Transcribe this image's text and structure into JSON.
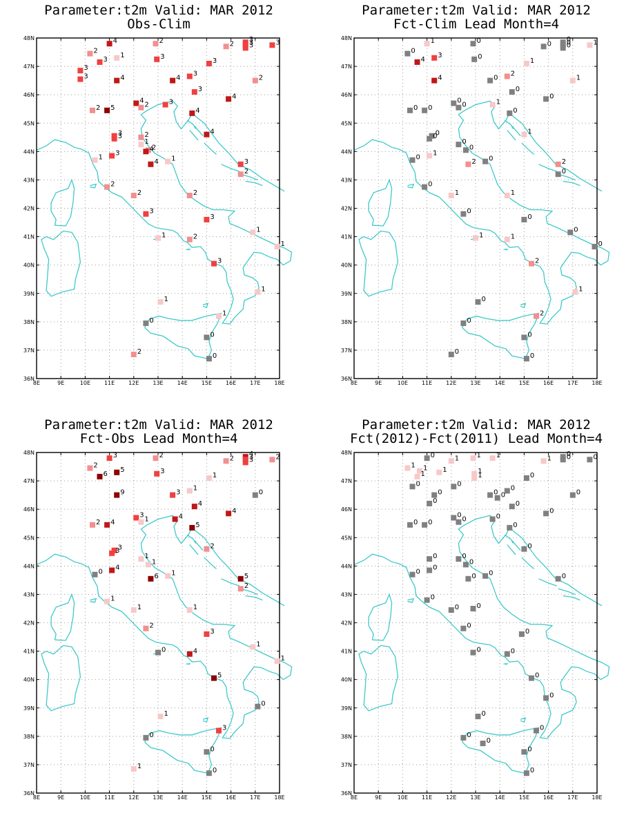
{
  "panels": [
    {
      "title1": "Parameter:t2m Valid: MAR 2012",
      "title2": "Obs-Clim",
      "stations": [
        [
          11.0,
          47.8,
          4
        ],
        [
          12.9,
          47.8,
          2
        ],
        [
          16.6,
          47.85,
          3
        ],
        [
          16.6,
          47.75,
          3
        ],
        [
          17.7,
          47.75,
          3
        ],
        [
          15.8,
          47.7,
          2
        ],
        [
          16.6,
          47.65,
          3
        ],
        [
          10.2,
          47.45,
          2
        ],
        [
          10.6,
          47.15,
          3
        ],
        [
          11.3,
          47.3,
          1
        ],
        [
          9.8,
          46.85,
          3
        ],
        [
          9.8,
          46.55,
          3
        ],
        [
          12.95,
          47.25,
          3
        ],
        [
          15.1,
          47.1,
          3
        ],
        [
          11.3,
          46.5,
          4
        ],
        [
          13.6,
          46.5,
          4
        ],
        [
          14.3,
          46.65,
          3
        ],
        [
          17.0,
          46.5,
          2
        ],
        [
          14.5,
          46.1,
          3
        ],
        [
          15.9,
          45.85,
          4
        ],
        [
          12.1,
          45.7,
          4
        ],
        [
          12.3,
          45.55,
          2
        ],
        [
          13.3,
          45.65,
          3
        ],
        [
          14.4,
          45.35,
          4
        ],
        [
          10.3,
          45.45,
          2
        ],
        [
          10.9,
          45.45,
          5
        ],
        [
          11.2,
          44.55,
          3
        ],
        [
          11.2,
          44.45,
          3
        ],
        [
          12.3,
          44.5,
          2
        ],
        [
          12.3,
          44.25,
          1
        ],
        [
          12.6,
          44.05,
          2
        ],
        [
          12.5,
          44.0,
          4
        ],
        [
          11.1,
          43.85,
          3
        ],
        [
          10.4,
          43.7,
          1
        ],
        [
          13.4,
          43.65,
          1
        ],
        [
          12.7,
          43.55,
          4
        ],
        [
          16.4,
          43.55,
          3
        ],
        [
          16.4,
          43.2,
          2
        ],
        [
          15.0,
          44.6,
          4
        ],
        [
          10.9,
          42.75,
          2
        ],
        [
          12.0,
          42.45,
          2
        ],
        [
          14.3,
          42.45,
          2
        ],
        [
          12.5,
          41.8,
          3
        ],
        [
          15.0,
          41.6,
          3
        ],
        [
          16.9,
          41.15,
          1
        ],
        [
          13.0,
          40.95,
          1
        ],
        [
          14.3,
          40.9,
          2
        ],
        [
          15.3,
          40.05,
          3
        ],
        [
          17.9,
          40.65,
          1
        ],
        [
          17.1,
          39.05,
          1
        ],
        [
          13.1,
          38.7,
          1
        ],
        [
          15.5,
          38.2,
          1
        ],
        [
          12.5,
          37.95,
          0
        ],
        [
          15.0,
          37.45,
          0
        ],
        [
          15.1,
          36.7,
          0
        ],
        [
          12.0,
          36.85,
          2
        ]
      ]
    },
    {
      "title1": "Parameter:t2m Valid: MAR 2012",
      "title2": "Fct-Clim Lead Month=4",
      "stations": [
        [
          11.0,
          47.8,
          1
        ],
        [
          12.9,
          47.8,
          0
        ],
        [
          16.6,
          47.85,
          0
        ],
        [
          16.6,
          47.75,
          0
        ],
        [
          17.7,
          47.75,
          1
        ],
        [
          15.8,
          47.7,
          0
        ],
        [
          16.6,
          47.65,
          0
        ],
        [
          10.2,
          47.45,
          0
        ],
        [
          10.6,
          47.15,
          4
        ],
        [
          11.3,
          47.3,
          3
        ],
        [
          12.95,
          47.25,
          0
        ],
        [
          15.1,
          47.1,
          1
        ],
        [
          11.3,
          46.5,
          4
        ],
        [
          13.6,
          46.5,
          0
        ],
        [
          14.3,
          46.65,
          2
        ],
        [
          17.0,
          46.5,
          1
        ],
        [
          14.5,
          46.1,
          0
        ],
        [
          15.9,
          45.85,
          0
        ],
        [
          12.1,
          45.7,
          0
        ],
        [
          12.3,
          45.55,
          0
        ],
        [
          13.7,
          45.65,
          1
        ],
        [
          14.4,
          45.35,
          0
        ],
        [
          10.3,
          45.45,
          0
        ],
        [
          10.9,
          45.45,
          0
        ],
        [
          11.2,
          44.55,
          0
        ],
        [
          11.1,
          44.45,
          0
        ],
        [
          12.3,
          44.25,
          0
        ],
        [
          12.6,
          44.05,
          0
        ],
        [
          11.1,
          43.85,
          1
        ],
        [
          10.4,
          43.7,
          0
        ],
        [
          13.4,
          43.65,
          0
        ],
        [
          12.7,
          43.55,
          2
        ],
        [
          16.4,
          43.55,
          2
        ],
        [
          16.4,
          43.2,
          0
        ],
        [
          15.0,
          44.6,
          1
        ],
        [
          10.9,
          42.75,
          0
        ],
        [
          12.0,
          42.45,
          1
        ],
        [
          14.3,
          42.45,
          1
        ],
        [
          12.5,
          41.8,
          0
        ],
        [
          15.0,
          41.6,
          0
        ],
        [
          16.9,
          41.15,
          0
        ],
        [
          13.0,
          40.95,
          1
        ],
        [
          14.3,
          40.9,
          1
        ],
        [
          15.3,
          40.05,
          2
        ],
        [
          17.9,
          40.65,
          0
        ],
        [
          17.1,
          39.05,
          1
        ],
        [
          13.1,
          38.7,
          0
        ],
        [
          15.5,
          38.2,
          2
        ],
        [
          12.5,
          37.95,
          0
        ],
        [
          15.0,
          37.45,
          0
        ],
        [
          15.1,
          36.7,
          0
        ],
        [
          12.0,
          36.85,
          0
        ]
      ]
    },
    {
      "title1": "Parameter:t2m Valid: MAR 2012",
      "title2": "Fct-Obs Lead Month=4",
      "stations": [
        [
          11.0,
          47.8,
          3
        ],
        [
          12.9,
          47.8,
          2
        ],
        [
          16.6,
          47.85,
          4
        ],
        [
          16.6,
          47.75,
          3
        ],
        [
          17.7,
          47.75,
          2
        ],
        [
          15.8,
          47.7,
          2
        ],
        [
          16.6,
          47.65,
          3
        ],
        [
          10.2,
          47.45,
          2
        ],
        [
          10.6,
          47.15,
          6
        ],
        [
          11.3,
          47.3,
          5
        ],
        [
          12.95,
          47.25,
          3
        ],
        [
          15.1,
          47.1,
          1
        ],
        [
          11.3,
          46.5,
          9
        ],
        [
          13.6,
          46.5,
          3
        ],
        [
          14.3,
          46.65,
          1
        ],
        [
          17.0,
          46.5,
          0
        ],
        [
          14.5,
          46.1,
          4
        ],
        [
          15.9,
          45.85,
          4
        ],
        [
          12.1,
          45.7,
          3
        ],
        [
          12.3,
          45.55,
          1
        ],
        [
          13.7,
          45.65,
          4
        ],
        [
          14.4,
          45.35,
          5
        ],
        [
          10.3,
          45.45,
          2
        ],
        [
          10.9,
          45.45,
          4
        ],
        [
          11.2,
          44.55,
          3
        ],
        [
          11.1,
          44.45,
          3
        ],
        [
          12.3,
          44.25,
          1
        ],
        [
          12.6,
          44.05,
          1
        ],
        [
          11.1,
          43.85,
          4
        ],
        [
          10.4,
          43.7,
          0
        ],
        [
          13.4,
          43.65,
          1
        ],
        [
          12.7,
          43.55,
          6
        ],
        [
          16.4,
          43.55,
          5
        ],
        [
          16.4,
          43.2,
          2
        ],
        [
          15.0,
          44.6,
          2
        ],
        [
          10.9,
          42.75,
          1
        ],
        [
          12.0,
          42.45,
          1
        ],
        [
          14.3,
          42.45,
          1
        ],
        [
          12.5,
          41.8,
          2
        ],
        [
          15.0,
          41.6,
          3
        ],
        [
          16.9,
          41.15,
          1
        ],
        [
          13.0,
          40.95,
          0
        ],
        [
          14.3,
          40.9,
          4
        ],
        [
          15.3,
          40.05,
          5
        ],
        [
          17.9,
          40.65,
          1
        ],
        [
          17.1,
          39.05,
          0
        ],
        [
          13.1,
          38.7,
          1
        ],
        [
          15.5,
          38.2,
          3
        ],
        [
          12.5,
          37.95,
          0
        ],
        [
          15.0,
          37.45,
          0
        ],
        [
          15.1,
          36.7,
          0
        ],
        [
          12.0,
          36.85,
          1
        ]
      ]
    },
    {
      "title1": "Parameter:t2m Valid: MAR 2012",
      "title2": "Fct(2012)-Fct(2011) Lead Month=4",
      "stations": [
        [
          11.0,
          47.8,
          0
        ],
        [
          12.9,
          47.8,
          1
        ],
        [
          13.7,
          47.8,
          1
        ],
        [
          16.6,
          47.85,
          0
        ],
        [
          16.6,
          47.75,
          0
        ],
        [
          17.7,
          47.75,
          0
        ],
        [
          15.8,
          47.7,
          1
        ],
        [
          12.0,
          47.7,
          1
        ],
        [
          10.2,
          47.45,
          1
        ],
        [
          10.7,
          47.35,
          1
        ],
        [
          11.5,
          47.3,
          1
        ],
        [
          10.6,
          47.15,
          1
        ],
        [
          12.95,
          47.25,
          1
        ],
        [
          12.95,
          47.1,
          1
        ],
        [
          15.1,
          47.1,
          0
        ],
        [
          10.4,
          46.8,
          0
        ],
        [
          12.1,
          46.8,
          0
        ],
        [
          11.3,
          46.5,
          0
        ],
        [
          13.6,
          46.5,
          0
        ],
        [
          13.9,
          46.4,
          0
        ],
        [
          14.3,
          46.65,
          0
        ],
        [
          17.0,
          46.5,
          0
        ],
        [
          14.5,
          46.1,
          0
        ],
        [
          11.1,
          46.2,
          0
        ],
        [
          15.9,
          45.85,
          0
        ],
        [
          12.1,
          45.7,
          0
        ],
        [
          12.3,
          45.55,
          0
        ],
        [
          13.7,
          45.65,
          0
        ],
        [
          14.4,
          45.35,
          0
        ],
        [
          10.3,
          45.45,
          0
        ],
        [
          10.9,
          45.45,
          0
        ],
        [
          11.1,
          44.25,
          0
        ],
        [
          12.3,
          44.25,
          0
        ],
        [
          12.6,
          44.05,
          0
        ],
        [
          11.1,
          43.85,
          0
        ],
        [
          10.4,
          43.7,
          0
        ],
        [
          13.4,
          43.65,
          0
        ],
        [
          12.7,
          43.55,
          0
        ],
        [
          16.4,
          43.55,
          0
        ],
        [
          15.0,
          44.6,
          0
        ],
        [
          11.0,
          42.8,
          0
        ],
        [
          12.0,
          42.45,
          0
        ],
        [
          12.9,
          42.5,
          0
        ],
        [
          12.5,
          41.8,
          0
        ],
        [
          14.9,
          41.6,
          0
        ],
        [
          12.9,
          40.95,
          0
        ],
        [
          14.3,
          40.9,
          0
        ],
        [
          15.3,
          40.05,
          0
        ],
        [
          15.9,
          39.35,
          0
        ],
        [
          13.1,
          38.7,
          0
        ],
        [
          15.5,
          38.2,
          0
        ],
        [
          12.5,
          37.95,
          0
        ],
        [
          13.3,
          37.75,
          0
        ],
        [
          15.0,
          37.45,
          0
        ],
        [
          15.1,
          36.7,
          0
        ]
      ]
    }
  ],
  "axes": {
    "lon_labels": [
      "8E",
      "9E",
      "10E",
      "11E",
      "12E",
      "13E",
      "14E",
      "15E",
      "16E",
      "17E",
      "18E"
    ],
    "lat_labels": [
      "36N",
      "37N",
      "38N",
      "39N",
      "40N",
      "41N",
      "42N",
      "43N",
      "44N",
      "45N",
      "46N",
      "47N",
      "48N"
    ],
    "lon_range": [
      8,
      18
    ],
    "lat_range": [
      36,
      48
    ]
  },
  "colors": {
    "coast": "#3fc9c9",
    "pos": [
      "#808080",
      "#f8c8c8",
      "#f09090",
      "#f04040",
      "#c01818",
      "#8c0000"
    ],
    "neg": [
      "#808080",
      "#c8c8f8",
      "#9090f0",
      "#4848f0",
      "#1818c0",
      "#00008c"
    ]
  }
}
